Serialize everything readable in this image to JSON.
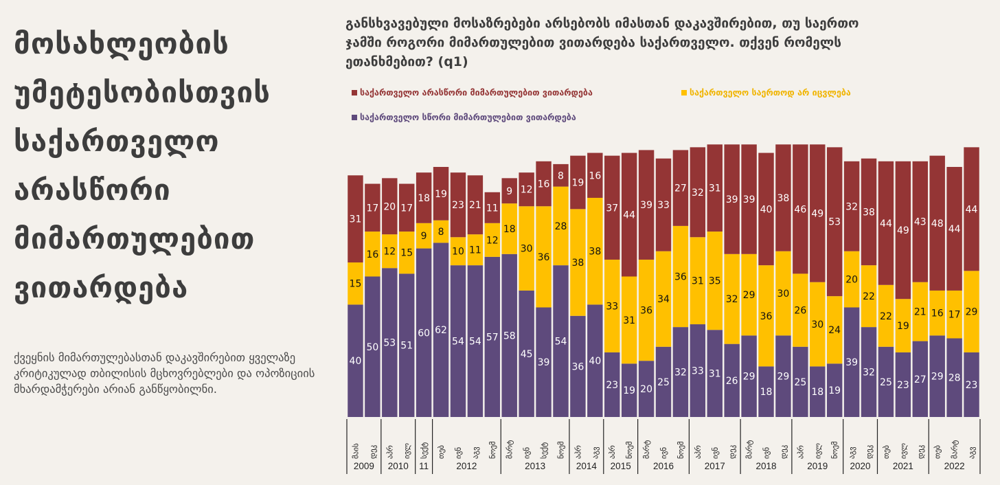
{
  "left_panel": {
    "title": "მოსახლეობის უმეტესობისთვის საქართველო არასწორი მიმართულებით ვითარდება",
    "subtitle": "ქვეყნის მიმართულებასთან დაკავშირებით ყველაზე კრიტიკულად თბილისის მცხოვრებლები და ოპოზიციის მხარდამჭერები არიან განწყობილნი."
  },
  "colors": {
    "wrong": "#943535",
    "unchanged": "#ffc000",
    "right": "#5e4a7c",
    "wrong_legend_text": "#943535",
    "unchanged_legend_text": "#f0b400",
    "right_legend_text": "#5e4a7c"
  },
  "chart_data": {
    "type": "bar",
    "stacked": true,
    "title": "განსხვავებული მოსაზრებები არსებობს იმასთან დაკავშირებით, თუ საერთო ჯამში როგორი მიმართულებით ვითარდება საქართველო. თქვენ რომელს ეთანხმებით? (q1)",
    "xlabel": "",
    "ylabel": "",
    "grid": false,
    "legend_position": "top",
    "legend": [
      "საქართველო არასწორი მიმართულებით ვითარდება",
      "საქართველო საერთოდ არ იცვლება",
      "საქართველო სწორი მიმართულებით ვითარდება"
    ],
    "categories": [
      "მაის 2009",
      "დეკ 2009",
      "აპრ 2010",
      "ივლ 2010",
      "სექტ 2011",
      "თებ 2012",
      "ივნ 2012",
      "აგვ 2012",
      "ნოემ 2012",
      "მარტ 2013",
      "ივნ 2013",
      "სექტ 2013",
      "ნოემ 2013",
      "აპრ 2014",
      "აგვ 2014",
      "აპრ 2015",
      "ნოემ 2015",
      "მარტ 2016",
      "ივნ 2016",
      "ნოემ 2016",
      "აპრ 2017",
      "ივნ 2017",
      "დეკ 2017",
      "მარტ 2018",
      "ივნ 2018",
      "დეკ 2018",
      "აპრ 2019",
      "ივლ 2019",
      "ნოემ 2019",
      "აგვ 2020",
      "დეკ 2020",
      "თებ 2021",
      "ივლ 2021",
      "დეკ 2021",
      "თებ 2022",
      "მარტ 2022",
      "აგვ 2022"
    ],
    "month_labels": [
      "მაის",
      "დეკ",
      "აპრ",
      "ივლ",
      "სექტ",
      "თებ",
      "ივნ",
      "აგვ",
      "ნოემ",
      "მარტ",
      "ივნ",
      "სექტ",
      "ნოემ",
      "აპრ",
      "აგვ",
      "აპრ",
      "ნოემ",
      "მარტ",
      "ივნ",
      "ნოემ",
      "აპრ",
      "ივნ",
      "დეკ",
      "მარტ",
      "ივნ",
      "დეკ",
      "აპრ",
      "ივლ",
      "ნოემ",
      "აგვ",
      "დეკ",
      "თებ",
      "ივლ",
      "დეკ",
      "თებ",
      "მარტ",
      "აგვ"
    ],
    "year_groups": [
      {
        "label": "2009",
        "count": 2
      },
      {
        "label": "2010",
        "count": 2
      },
      {
        "label": "11",
        "count": 1
      },
      {
        "label": "2012",
        "count": 4
      },
      {
        "label": "2013",
        "count": 4
      },
      {
        "label": "2014",
        "count": 2
      },
      {
        "label": "2015",
        "count": 2
      },
      {
        "label": "2016",
        "count": 3
      },
      {
        "label": "2017",
        "count": 3
      },
      {
        "label": "2018",
        "count": 3
      },
      {
        "label": "2019",
        "count": 3
      },
      {
        "label": "2020",
        "count": 2
      },
      {
        "label": "2021",
        "count": 3
      },
      {
        "label": "2022",
        "count": 3
      }
    ],
    "series": [
      {
        "name": "საქართველო სწორი მიმართულებით ვითარდება",
        "key": "right",
        "values": [
          40,
          50,
          53,
          51,
          60,
          62,
          54,
          54,
          57,
          58,
          45,
          39,
          54,
          36,
          40,
          23,
          19,
          20,
          25,
          32,
          33,
          31,
          26,
          29,
          18,
          29,
          25,
          18,
          19,
          39,
          32,
          25,
          23,
          27,
          29,
          28,
          23
        ]
      },
      {
        "name": "საქართველო საერთოდ არ იცვლება",
        "key": "unchanged",
        "values": [
          15,
          16,
          12,
          15,
          9,
          8,
          10,
          11,
          12,
          18,
          30,
          36,
          28,
          38,
          38,
          33,
          31,
          36,
          34,
          36,
          31,
          35,
          32,
          29,
          36,
          30,
          26,
          30,
          24,
          20,
          22,
          22,
          19,
          21,
          16,
          17,
          29
        ]
      },
      {
        "name": "საქართველო არასწორი მიმართულებით ვითარდება",
        "key": "wrong",
        "values": [
          31,
          17,
          20,
          17,
          18,
          19,
          23,
          21,
          11,
          9,
          12,
          16,
          8,
          19,
          16,
          37,
          44,
          39,
          33,
          27,
          32,
          31,
          39,
          39,
          40,
          38,
          46,
          49,
          53,
          32,
          38,
          44,
          49,
          43,
          48,
          44,
          44
        ]
      }
    ],
    "ylim": [
      0,
      100
    ]
  }
}
